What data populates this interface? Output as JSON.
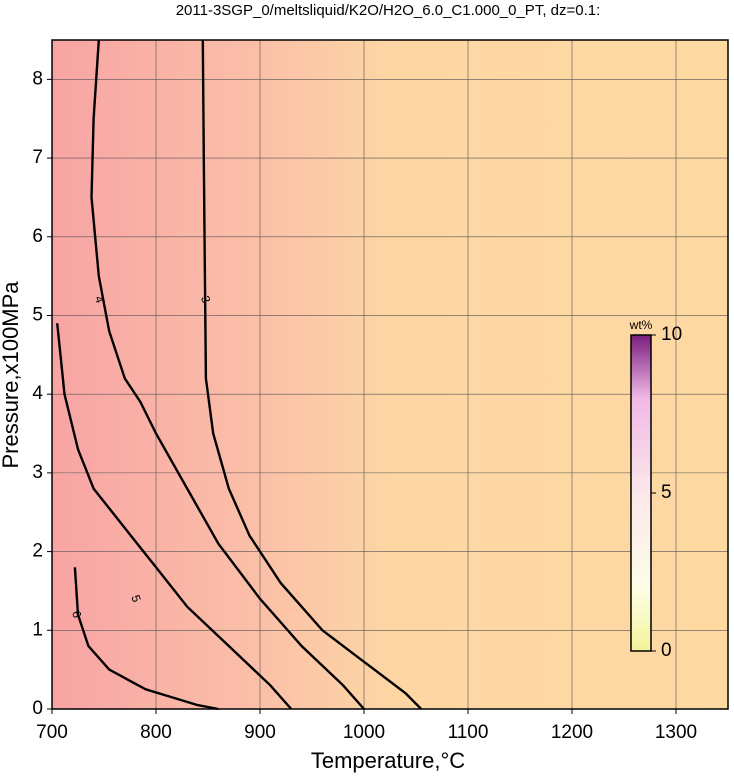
{
  "chart_data": {
    "type": "contour",
    "title": "2011-3SGP_0/meltsliquid/K2O/H2O_6.0_C1.000_0_PT, dz=0.1:",
    "x_label": "Temperature,°C",
    "y_label": "Pressure,x100MPa",
    "xlim": [
      700,
      1350
    ],
    "ylim": [
      0,
      8.5
    ],
    "xticks": [
      700,
      800,
      900,
      1000,
      1100,
      1200,
      1300
    ],
    "yticks": [
      0,
      1,
      2,
      3,
      4,
      5,
      6,
      7,
      8
    ],
    "grid": true,
    "colorbar": {
      "label": "wt%",
      "zlim": [
        0,
        10
      ],
      "zticks": [
        0,
        5,
        10
      ]
    },
    "contours": [
      {
        "level": 3,
        "label": "3",
        "label_at": [
          847,
          5.2
        ],
        "x": [
          845,
          846,
          847,
          848,
          855,
          870,
          890,
          920,
          960,
          1000,
          1040,
          1055
        ],
        "y": [
          8.5,
          7.0,
          5.5,
          4.2,
          3.5,
          2.8,
          2.2,
          1.6,
          1.0,
          0.6,
          0.2,
          0
        ]
      },
      {
        "level": 4,
        "label": "4",
        "label_at": [
          745,
          5.2
        ],
        "x": [
          745,
          740,
          738,
          745,
          755,
          770,
          785,
          800,
          830,
          860,
          900,
          940,
          980,
          1000
        ],
        "y": [
          8.5,
          7.5,
          6.5,
          5.5,
          4.8,
          4.2,
          3.9,
          3.5,
          2.8,
          2.1,
          1.4,
          0.8,
          0.3,
          0
        ]
      },
      {
        "level": 5,
        "label": "5",
        "label_at": [
          780,
          1.4
        ],
        "x": [
          705,
          712,
          725,
          740,
          770,
          800,
          830,
          870,
          910,
          930
        ],
        "y": [
          4.9,
          4.0,
          3.3,
          2.8,
          2.3,
          1.8,
          1.3,
          0.8,
          0.3,
          0
        ]
      },
      {
        "level": 6,
        "label": "6",
        "label_at": [
          723,
          1.2
        ],
        "x": [
          722,
          725,
          735,
          755,
          790,
          840,
          860
        ],
        "y": [
          1.8,
          1.2,
          0.8,
          0.5,
          0.25,
          0.05,
          0
        ]
      }
    ]
  }
}
